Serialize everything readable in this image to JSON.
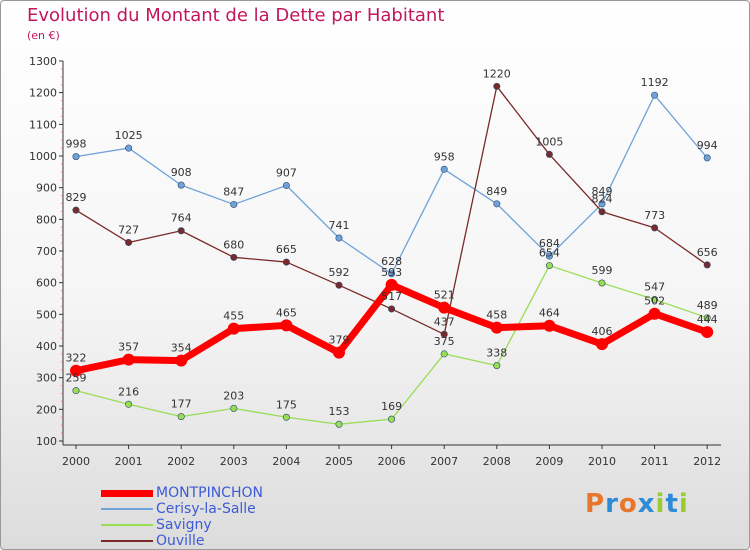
{
  "header": {
    "title": "Evolution du Montant de la Dette par Habitant",
    "subtitle": "(en €)"
  },
  "colors": {
    "title": "#c2185b",
    "legend_text": "#3c5bd6",
    "montpinchon": "#ff0000",
    "cerisy": "#6fa2d8",
    "savigny": "#99dd55",
    "ouville": "#7a2a2a"
  },
  "logo": {
    "text": "Proxiti",
    "colors": [
      "#e8762c",
      "#2e8bd8",
      "#e8762c",
      "#2e8bd8",
      "#99cc33",
      "#2e8bd8",
      "#99cc33"
    ]
  },
  "chart_data": {
    "type": "line",
    "title": "Evolution du Montant de la Dette par Habitant",
    "subtitle": "(en €)",
    "x": [
      "2000",
      "2001",
      "2002",
      "2003",
      "2004",
      "2005",
      "2006",
      "2007",
      "2008",
      "2009",
      "2010",
      "2011",
      "2012"
    ],
    "ylim": [
      100,
      1300
    ],
    "yticks": [
      100,
      200,
      300,
      400,
      500,
      600,
      700,
      800,
      900,
      1000,
      1100,
      1200,
      1300
    ],
    "grid": false,
    "legend_position": "bottom-left",
    "series": [
      {
        "name": "MONTPINCHON",
        "color": "#ff0000",
        "width": 7,
        "labels": [
          "322",
          "357",
          "354",
          "455",
          "465",
          "379",
          "593",
          "521",
          "458",
          "464",
          "406",
          "502",
          "444"
        ],
        "values": [
          322,
          357,
          354,
          455,
          465,
          379,
          593,
          521,
          458,
          464,
          406,
          502,
          444
        ]
      },
      {
        "name": "Cerisy-la-Salle",
        "color": "#6fa2d8",
        "width": 1.3,
        "labels": [
          "998",
          "1025",
          "908",
          "847",
          "907",
          "741",
          "628",
          "958",
          "849",
          "684",
          "849",
          "1192",
          "994"
        ],
        "values": [
          998,
          1025,
          908,
          847,
          907,
          741,
          628,
          958,
          849,
          684,
          849,
          1192,
          994
        ]
      },
      {
        "name": "Savigny",
        "color": "#99dd55",
        "width": 1.3,
        "labels": [
          "259",
          "216",
          "177",
          "203",
          "175",
          "153",
          "169",
          "375",
          "338",
          "654",
          "599",
          "547",
          "489"
        ],
        "values": [
          259,
          216,
          177,
          203,
          175,
          153,
          169,
          375,
          338,
          654,
          599,
          547,
          489
        ]
      },
      {
        "name": "Ouville",
        "color": "#7a2a2a",
        "width": 1.3,
        "labels": [
          "829",
          "727",
          "764",
          "680",
          "665",
          "592",
          "517",
          "437",
          "1220",
          "1005",
          "824",
          "773",
          "656"
        ],
        "values": [
          829,
          727,
          764,
          680,
          665,
          592,
          517,
          437,
          1220,
          1005,
          824,
          773,
          656
        ]
      }
    ]
  }
}
